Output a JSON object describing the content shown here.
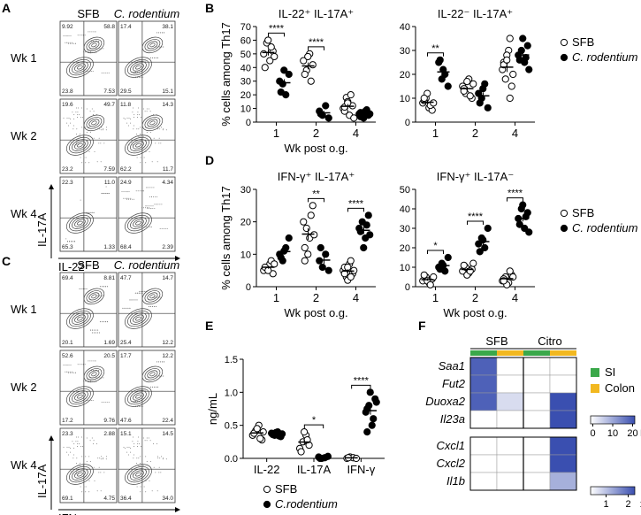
{
  "panels": {
    "A": "A",
    "B": "B",
    "C": "C",
    "D": "D",
    "E": "E",
    "F": "F"
  },
  "flow_A": {
    "columns": [
      "SFB",
      "C. rodentium"
    ],
    "rows": [
      "Wk 1",
      "Wk 2",
      "Wk 4"
    ],
    "xlabel": "IL-22",
    "ylabel": "IL-17A",
    "quadrants": [
      [
        [
          "9.92",
          "58.8",
          "23.8",
          "7.53"
        ],
        [
          "17.4",
          "38.1",
          "29.5",
          "15.1"
        ]
      ],
      [
        [
          "19.6",
          "49.7",
          "23.2",
          "7.59"
        ],
        [
          "11.8",
          "14.3",
          "62.2",
          "11.7"
        ]
      ],
      [
        [
          "22.3",
          "11.0",
          "65.3",
          "1.33"
        ],
        [
          "24.9",
          "4.34",
          "68.4",
          "2.39"
        ]
      ]
    ]
  },
  "flow_C": {
    "columns": [
      "SFB",
      "C. rodentium"
    ],
    "rows": [
      "Wk 1",
      "Wk 2",
      "Wk 4"
    ],
    "xlabel": "IFN-γ",
    "ylabel": "IL-17A",
    "quadrants": [
      [
        [
          "69.4",
          "8.81",
          "20.1",
          "1.69"
        ],
        [
          "47.7",
          "14.7",
          "25.4",
          "12.2"
        ]
      ],
      [
        [
          "52.6",
          "20.5",
          "17.2",
          "9.76"
        ],
        [
          "17.7",
          "12.2",
          "47.6",
          "22.4"
        ]
      ],
      [
        [
          "23.3",
          "2.88",
          "69.1",
          "4.75"
        ],
        [
          "15.1",
          "14.5",
          "36.4",
          "34.0"
        ]
      ]
    ]
  },
  "legend": {
    "sfb": "SFB",
    "cr": "C.rodentium",
    "cr_italic": "C. rodentium"
  },
  "chart_data": [
    {
      "id": "B1",
      "type": "scatter",
      "title": "IL-22⁺ IL-17A⁺",
      "ylabel": "% cells among Th17",
      "xlabel": "Wk post o.g.",
      "categories": [
        "1",
        "2",
        "4"
      ],
      "ylim": [
        0,
        70
      ],
      "yticks": [
        "0",
        "10",
        "20",
        "30",
        "40",
        "50",
        "60",
        "70"
      ],
      "sfb": [
        [
          50,
          58,
          45,
          52,
          40,
          60,
          55,
          48
        ],
        [
          45,
          38,
          50,
          42,
          35,
          48,
          30
        ],
        [
          10,
          18,
          5,
          12,
          8,
          15,
          20,
          3,
          11,
          14
        ]
      ],
      "cr": [
        [
          30,
          28,
          20,
          35,
          22,
          38
        ],
        [
          8,
          5,
          12,
          3,
          6
        ],
        [
          6,
          4,
          8,
          5,
          7,
          3,
          9,
          6,
          4,
          7
        ]
      ],
      "sig": [
        {
          "a": 1,
          "label": "****"
        },
        {
          "a": 2,
          "label": "****"
        }
      ]
    },
    {
      "id": "B2",
      "type": "scatter",
      "title": "IL-22⁻ IL-17A⁺",
      "categories": [
        "1",
        "2",
        "4"
      ],
      "ylim": [
        0,
        40
      ],
      "yticks": [
        "0",
        "10",
        "20",
        "30",
        "40"
      ],
      "sfb": [
        [
          8,
          10,
          6,
          5,
          9,
          12,
          7,
          8,
          10
        ],
        [
          15,
          12,
          18,
          10,
          14,
          17,
          11,
          16,
          13
        ],
        [
          22,
          18,
          30,
          15,
          25,
          28,
          10,
          20,
          24,
          26,
          35
        ]
      ],
      "cr": [
        [
          25,
          18,
          20,
          15,
          26,
          22
        ],
        [
          12,
          10,
          16,
          6,
          8,
          14
        ],
        [
          28,
          30,
          25,
          32,
          26,
          35,
          27,
          22
        ]
      ],
      "sig": [
        {
          "a": 1,
          "label": "**"
        }
      ]
    },
    {
      "id": "D1",
      "type": "scatter",
      "title": "IFN-γ⁺ IL-17A⁺",
      "ylabel": "% cells among Th17",
      "xlabel": "Wk post o.g.",
      "categories": [
        "1",
        "2",
        "4"
      ],
      "ylim": [
        0,
        30
      ],
      "yticks": [
        "0",
        "10",
        "20",
        "30"
      ],
      "sfb": [
        [
          5,
          6,
          7,
          4,
          6,
          5,
          8,
          7
        ],
        [
          20,
          18,
          15,
          25,
          12,
          10,
          22,
          16,
          8
        ],
        [
          5,
          3,
          7,
          4,
          6,
          2,
          8,
          5,
          4,
          6,
          3
        ]
      ],
      "cr": [
        [
          10,
          8,
          12,
          15,
          9,
          11
        ],
        [
          8,
          6,
          10,
          5,
          12
        ],
        [
          18,
          20,
          15,
          22,
          17,
          12,
          19,
          16
        ]
      ],
      "sig": [
        {
          "a": 2,
          "label": "**"
        },
        {
          "a": 3,
          "label": "****"
        }
      ]
    },
    {
      "id": "D2",
      "type": "scatter",
      "title": "IFN-γ⁺ IL-17A⁻",
      "xlabel": "Wk post o.g.",
      "categories": [
        "1",
        "2",
        "4"
      ],
      "ylim": [
        0,
        50
      ],
      "yticks": [
        "0",
        "10",
        "20",
        "30",
        "40",
        "50"
      ],
      "sfb": [
        [
          3,
          5,
          2,
          4,
          6,
          3,
          1,
          5
        ],
        [
          8,
          10,
          7,
          9,
          11,
          6,
          8,
          12
        ],
        [
          3,
          5,
          2,
          6,
          4,
          1,
          8,
          5,
          3
        ]
      ],
      "cr": [
        [
          10,
          12,
          8,
          15,
          9,
          11
        ],
        [
          22,
          25,
          20,
          30,
          18,
          24
        ],
        [
          35,
          40,
          30,
          38,
          32,
          42,
          36,
          28
        ]
      ],
      "sig": [
        {
          "a": 1,
          "label": "*"
        },
        {
          "a": 2,
          "label": "****"
        },
        {
          "a": 3,
          "label": "****"
        }
      ]
    },
    {
      "id": "E",
      "type": "scatter",
      "ylabel": "ng/mL",
      "categories": [
        "IL-22",
        "IL-17A",
        "IFN-γ"
      ],
      "ylim": [
        0,
        1.5
      ],
      "yticks": [
        "0.0",
        "0.5",
        "1.0",
        "1.5"
      ],
      "sfb": [
        [
          0.35,
          0.42,
          0.5,
          0.28,
          0.38,
          0.45,
          0.3,
          0.4
        ],
        [
          0.15,
          0.25,
          0.35,
          0.2,
          0.1,
          0.4,
          0.28
        ],
        [
          0.0,
          0.02,
          0.01,
          0.0,
          0.01
        ]
      ],
      "cr": [
        [
          0.38,
          0.35,
          0.4,
          0.33,
          0.36,
          0.39,
          0.34,
          0.37
        ],
        [
          0.02,
          0.0,
          0.01,
          0.03,
          0.0
        ],
        [
          0.7,
          0.8,
          0.5,
          0.9,
          0.75,
          1.0,
          0.6,
          0.85,
          0.4
        ]
      ],
      "sig": [
        {
          "a": 2,
          "label": "*"
        },
        {
          "a": 3,
          "label": "****"
        }
      ]
    },
    {
      "id": "F",
      "type": "heatmap",
      "groups": [
        "SFB",
        "Citro"
      ],
      "tissues": [
        "SI",
        "Colon"
      ],
      "genes1": [
        "Saa1",
        "Fut2",
        "Duoxa2",
        "Il23a"
      ],
      "vals1": [
        [
          0.9,
          0,
          0,
          0
        ],
        [
          0.9,
          0,
          0,
          0
        ],
        [
          0.9,
          0.2,
          0,
          1
        ],
        [
          0,
          0,
          0,
          1
        ]
      ],
      "scale1": {
        "ticks": [
          "0",
          "10",
          "20"
        ],
        "unit": "FC"
      },
      "genes2": [
        "Cxcl1",
        "Cxcl2",
        "Il1b"
      ],
      "vals2": [
        [
          0,
          0,
          0,
          1
        ],
        [
          0,
          0,
          0,
          1
        ],
        [
          0,
          0,
          0,
          0.45
        ]
      ],
      "scale2": {
        "ticks": [
          "1",
          "2"
        ],
        "unit": "x10³ FC"
      },
      "colors": {
        "SI": "#3aa84a",
        "Colon": "#f2b820",
        "high": "#3a4fb0",
        "low": "#ffffff"
      }
    }
  ]
}
